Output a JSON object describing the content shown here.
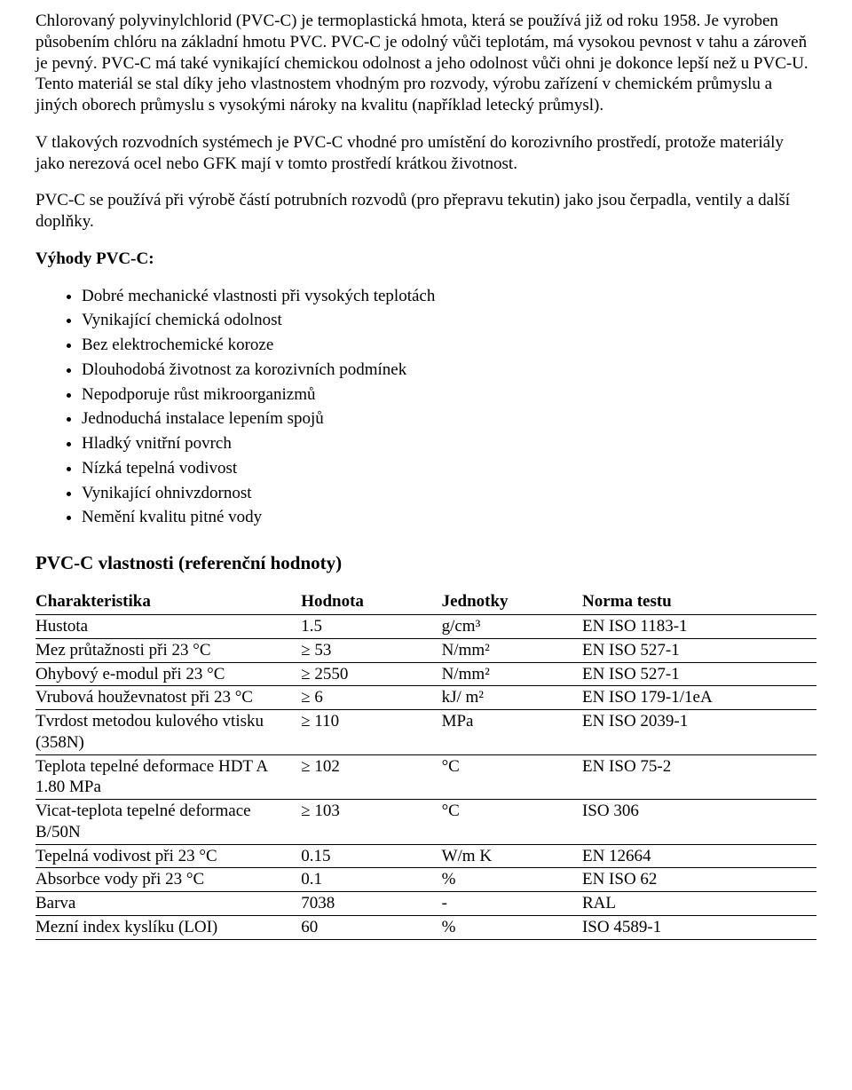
{
  "paragraphs": [
    "Chlorovaný polyvinylchlorid (PVC-C) je termoplastická hmota, která se používá již od roku 1958. Je vyroben působením chlóru na základní hmotu PVC. PVC-C je odolný vůči teplotám, má vysokou pevnost v tahu a zároveň je pevný. PVC-C má také vynikající chemickou odolnost a jeho odolnost vůči ohni je dokonce lepší než u PVC-U. Tento materiál se stal díky jeho vlastnostem vhodným pro rozvody, výrobu zařízení v chemickém průmyslu a jiných oborech průmyslu s vysokými nároky na kvalitu (například letecký průmysl).",
    "V tlakových rozvodních systémech je PVC-C vhodné pro umístění do korozivního prostředí, protože materiály jako nerezová ocel nebo GFK mají v tomto prostředí krátkou životnost.",
    "PVC-C se používá při výrobě částí potrubních rozvodů (pro přepravu tekutin) jako jsou čerpadla, ventily a další doplňky."
  ],
  "advantages_title": "Výhody PVC-C:",
  "advantages": [
    "Dobré mechanické vlastnosti při vysokých teplotách",
    "Vynikající chemická odolnost",
    "Bez elektrochemické koroze",
    "Dlouhodobá životnost za korozivních podmínek",
    "Nepodporuje růst mikroorganizmů",
    "Jednoduchá instalace lepením spojů",
    "Hladký vnitřní povrch",
    "Nízká tepelná vodivost",
    "Vynikající ohnivzdornost",
    "Nemění kvalitu pitné vody"
  ],
  "ref_title": "PVC-C vlastnosti (referenční hodnoty)",
  "table": {
    "headers": [
      "Charakteristika",
      "Hodnota",
      "Jednotky",
      "Norma testu"
    ],
    "rows": [
      [
        "Hustota",
        "1.5",
        "g/cm³",
        "EN ISO 1183-1"
      ],
      [
        "Mez průtažnosti při 23 °C",
        "≥ 53",
        "N/mm²",
        "EN ISO 527-1"
      ],
      [
        "Ohybový e-modul při 23 °C",
        "≥ 2550",
        "N/mm²",
        "EN ISO 527-1"
      ],
      [
        "Vrubová houževnatost při 23 °C",
        "≥ 6",
        "kJ/ m²",
        "EN ISO 179-1/1eA"
      ],
      [
        "Tvrdost metodou kulového vtisku (358N)",
        "≥ 110",
        "MPa",
        "EN ISO 2039-1"
      ],
      [
        "Teplota tepelné deformace HDT A 1.80 MPa",
        "≥ 102",
        "°C",
        "EN ISO 75-2"
      ],
      [
        "Vicat-teplota tepelné deformace B/50N",
        "≥ 103",
        "°C",
        "ISO 306"
      ],
      [
        "Tepelná vodivost při 23 °C",
        "0.15",
        "W/m K",
        "EN 12664"
      ],
      [
        "Absorbce vody při 23 °C",
        "0.1",
        "%",
        "EN ISO 62"
      ],
      [
        "Barva",
        "7038",
        "-",
        "RAL"
      ],
      [
        "Mezní index kyslíku (LOI)",
        "60",
        "%",
        "ISO 4589-1"
      ]
    ],
    "col_widths_percent": [
      34,
      18,
      18,
      30
    ],
    "border_color": "#000000",
    "font_size_pt": 14
  },
  "colors": {
    "text": "#000000",
    "background": "#ffffff"
  }
}
